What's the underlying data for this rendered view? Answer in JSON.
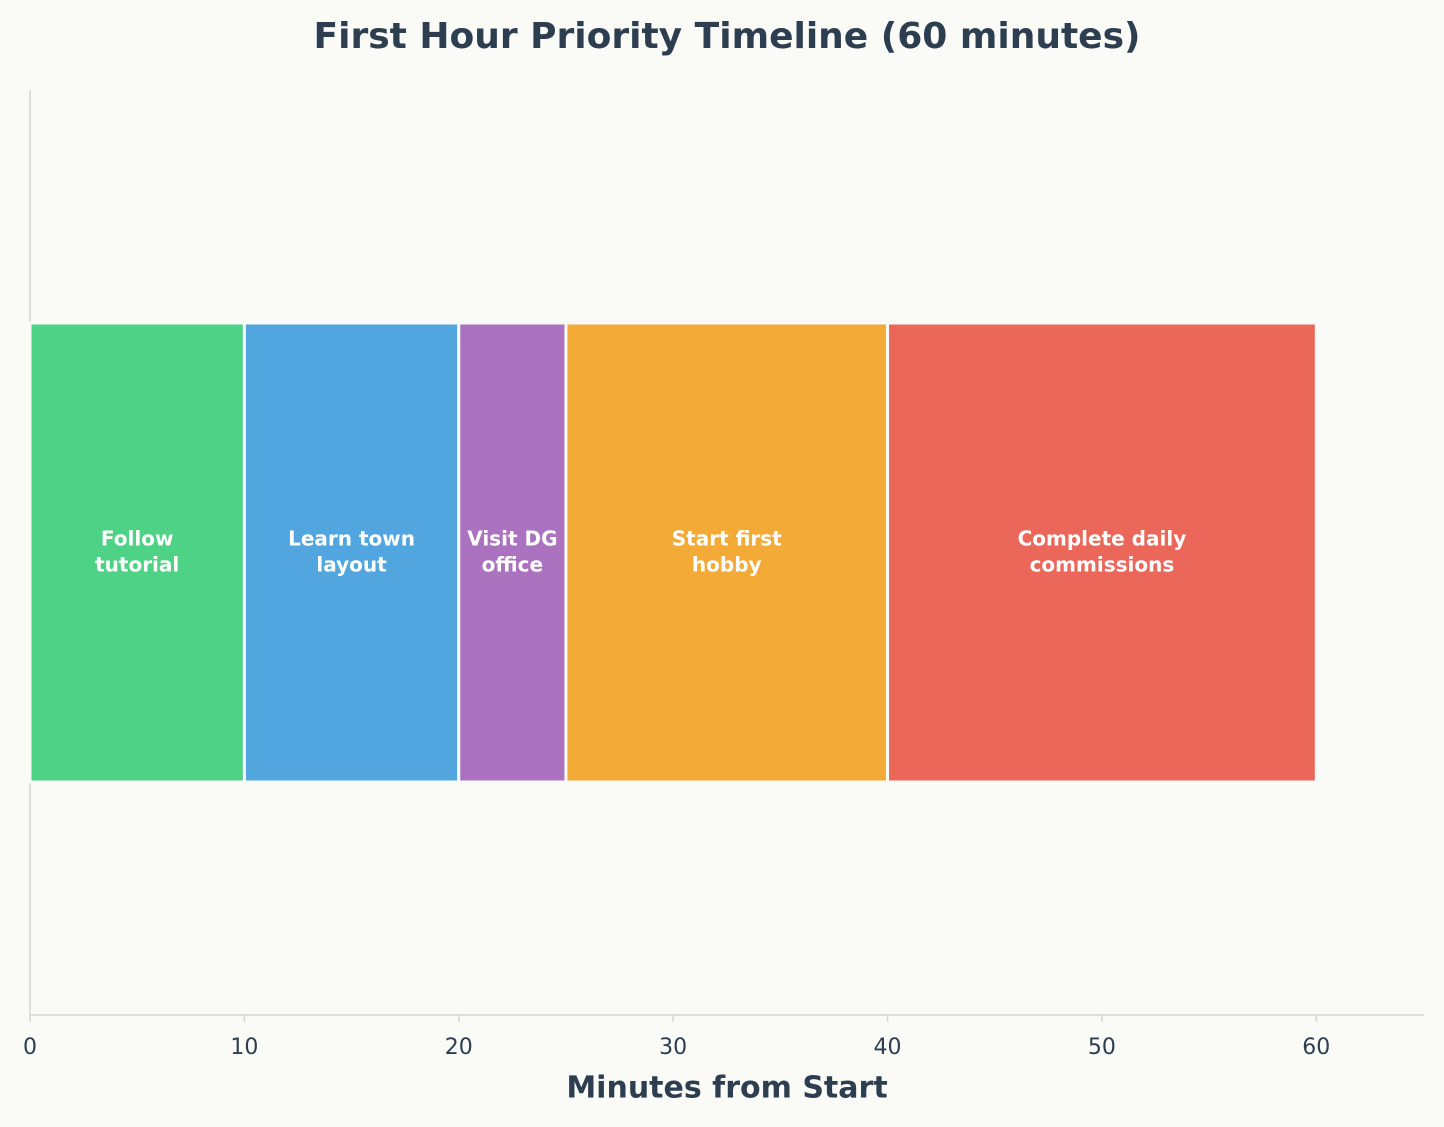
{
  "chart_data": {
    "type": "timeline",
    "title": "First Hour Priority Timeline (60 minutes)",
    "xlabel": "Minutes from Start",
    "categories": [
      "Follow\ntutorial",
      "Learn town\nlayout",
      "Visit DG\noffice",
      "Start first\nhobby",
      "Complete daily\ncommissions"
    ],
    "values": [
      10,
      10,
      5,
      15,
      20
    ],
    "colors": [
      "#4ed285",
      "#52a6df",
      "#ab72bf",
      "#f4aa37",
      "#eb675a"
    ],
    "xlim": [
      0,
      65
    ],
    "xticks": [
      0,
      10,
      20,
      30,
      40,
      50,
      60
    ]
  }
}
